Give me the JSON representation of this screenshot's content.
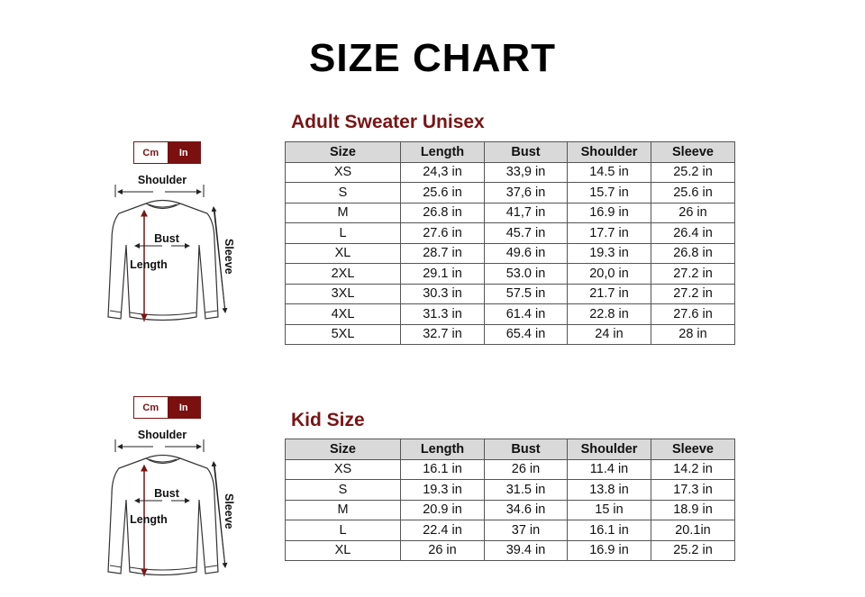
{
  "title": "SIZE CHART",
  "accent_color": "#7a1414",
  "diagram": {
    "unit_cm": "Cm",
    "unit_in": "In",
    "selected_unit": "In",
    "shoulder": "Shoulder",
    "bust": "Bust",
    "length": "Length",
    "sleeve": "Sleeve"
  },
  "adult": {
    "heading": "Adult Sweater Unisex",
    "columns": [
      "Size",
      "Length",
      "Bust",
      "Shoulder",
      "Sleeve"
    ],
    "rows": [
      [
        "XS",
        "24,3 in",
        "33,9 in",
        "14.5 in",
        "25.2 in"
      ],
      [
        "S",
        "25.6 in",
        "37,6 in",
        "15.7 in",
        "25.6 in"
      ],
      [
        "M",
        "26.8 in",
        "41,7 in",
        "16.9 in",
        "26 in"
      ],
      [
        "L",
        "27.6 in",
        "45.7 in",
        "17.7 in",
        "26.4 in"
      ],
      [
        "XL",
        "28.7 in",
        "49.6 in",
        "19.3 in",
        "26.8 in"
      ],
      [
        "2XL",
        "29.1 in",
        "53.0 in",
        "20,0 in",
        "27.2 in"
      ],
      [
        "3XL",
        "30.3 in",
        "57.5 in",
        "21.7 in",
        "27.2 in"
      ],
      [
        "4XL",
        "31.3 in",
        "61.4 in",
        "22.8 in",
        "27.6 in"
      ],
      [
        "5XL",
        "32.7 in",
        "65.4 in",
        "24 in",
        "28 in"
      ]
    ]
  },
  "kid": {
    "heading": "Kid Size",
    "columns": [
      "Size",
      "Length",
      "Bust",
      "Shoulder",
      "Sleeve"
    ],
    "rows": [
      [
        "XS",
        "16.1 in",
        "26 in",
        "11.4 in",
        "14.2 in"
      ],
      [
        "S",
        "19.3 in",
        "31.5 in",
        "13.8 in",
        "17.3 in"
      ],
      [
        "M",
        "20.9 in",
        "34.6 in",
        "15 in",
        "18.9 in"
      ],
      [
        "L",
        "22.4 in",
        "37 in",
        "16.1 in",
        "20.1in"
      ],
      [
        "XL",
        "26 in",
        "39.4 in",
        "16.9 in",
        "25.2 in"
      ]
    ]
  }
}
